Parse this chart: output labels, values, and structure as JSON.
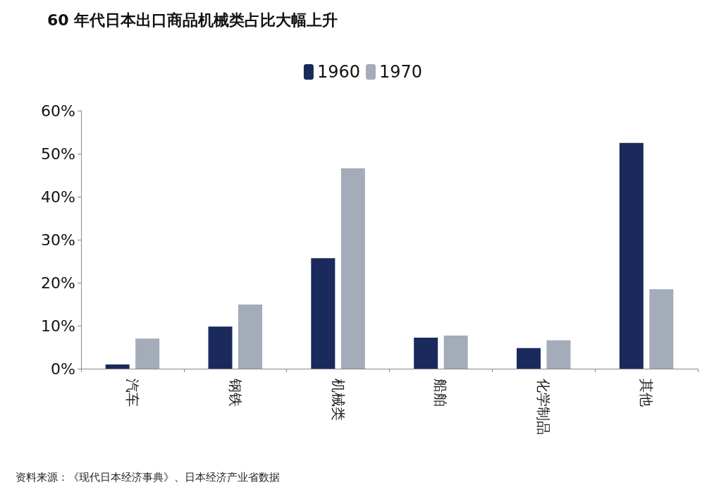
{
  "chart_data": {
    "type": "bar",
    "title": "60 年代日本出口商品机械类占比大幅上升",
    "categories": [
      "汽车",
      "钢铁",
      "机械类",
      "船舶",
      "化学制品",
      "其他"
    ],
    "series": [
      {
        "name": "1960",
        "color": "#1b2a5c",
        "values": [
          1,
          9.8,
          25.7,
          7.2,
          4.8,
          52.5
        ]
      },
      {
        "name": "1970",
        "color": "#a3acb8",
        "values": [
          7,
          14.9,
          46.6,
          7.7,
          6.6,
          18.5
        ]
      }
    ],
    "ylim": [
      0,
      60
    ],
    "yticks": [
      {
        "value": 0,
        "label": "0%"
      },
      {
        "value": 10,
        "label": "10%"
      },
      {
        "value": 20,
        "label": "20%"
      },
      {
        "value": 30,
        "label": "30%"
      },
      {
        "value": 40,
        "label": "40%"
      },
      {
        "value": 50,
        "label": "50%"
      },
      {
        "value": 60,
        "label": "60%"
      }
    ],
    "grid": false,
    "legend": "top",
    "annotations": [
      "资料来源：《现代日本经济事典》、日本经济产业省数据"
    ]
  }
}
